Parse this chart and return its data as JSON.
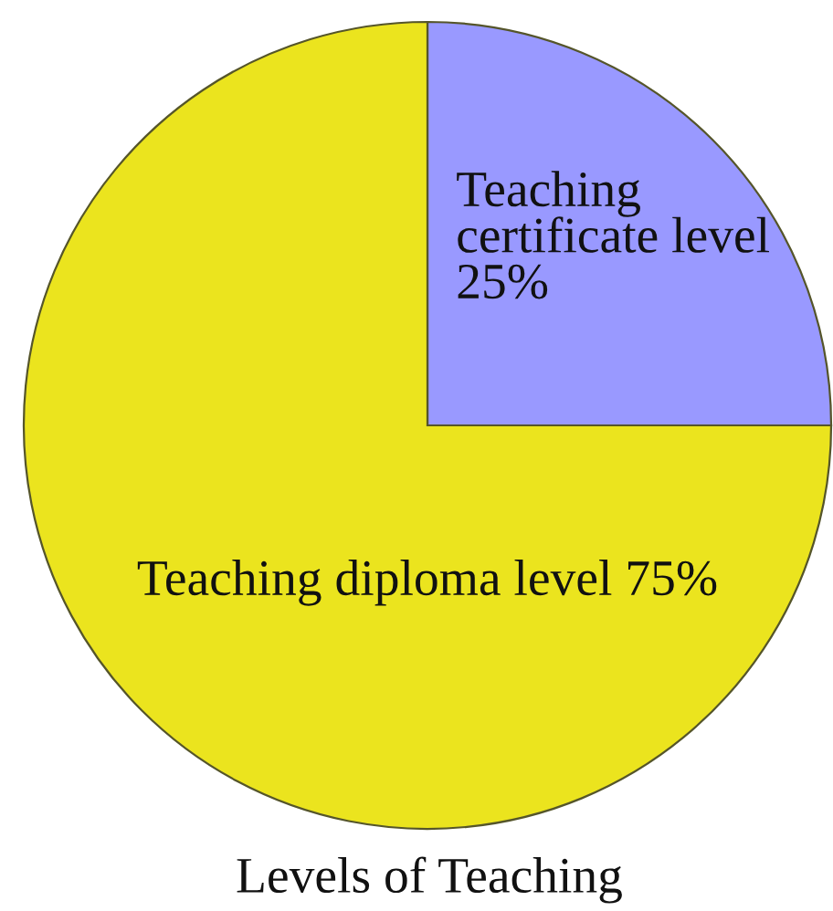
{
  "chart_data": {
    "type": "pie",
    "title": "Levels of Teaching",
    "categories": [
      "Teaching certificate level",
      "Teaching diploma level"
    ],
    "values": [
      25,
      75
    ],
    "colors": [
      "#9999ff",
      "#ebe41e"
    ],
    "value_labels": [
      "25%",
      "75%"
    ]
  }
}
